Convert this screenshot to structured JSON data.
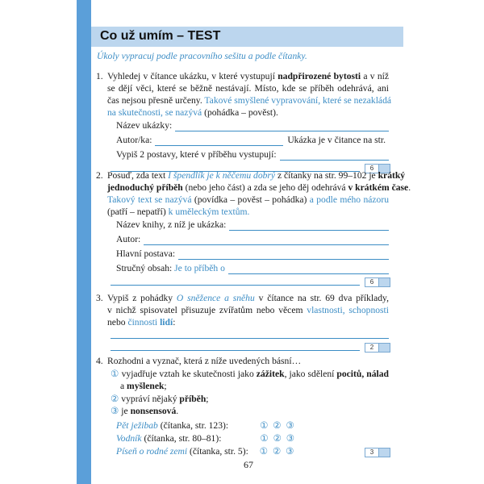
{
  "colors": {
    "accent": "#3c8dc5",
    "strip": "#5b9fd9",
    "title_bar": "#bcd6ee"
  },
  "title": "Co už umím – TEST",
  "subtitle": "Úkoly vypracuj podle pracovního sešitu a podle čítanky.",
  "tasks": [
    {
      "number": "1.",
      "lines": [
        [
          [
            "n",
            "Vyhledej v čítance ukázku, v které vystupují "
          ],
          [
            "b",
            "nadpřirozené bytosti"
          ],
          [
            "n",
            " a v níž"
          ]
        ],
        [
          [
            "n",
            "se dějí věci, které se běžně nestávají. Místo, kde se příběh odehrává, ani"
          ]
        ],
        [
          [
            "n",
            "čas nejsou přesně určeny. "
          ],
          [
            "c",
            "Takové smyšlené vypravování, které se nezakládá"
          ]
        ],
        [
          [
            "c",
            "na skutečnosti, se nazývá"
          ],
          [
            "n",
            " (pohádka – pověst)."
          ]
        ],
        [
          [
            "n",
            "Název ukázky:"
          ],
          [
            "blank",
            "grow"
          ]
        ],
        [
          [
            "n",
            "Autor/ka:"
          ],
          [
            "blank",
            "160"
          ],
          [
            "n",
            "  Ukázka je v čitance na str."
          ],
          [
            "blank",
            "grow"
          ]
        ],
        [
          [
            "n",
            "Vypiš 2 postavy, které v příběhu vystupují:"
          ],
          [
            "blank",
            "grow"
          ]
        ],
        [
          [
            "blank",
            "grow"
          ]
        ]
      ],
      "score": "6"
    },
    {
      "number": "2.",
      "lines": [
        [
          [
            "n",
            "Posuď, zda text "
          ],
          [
            "ci",
            "I špendlík je k něčemu dobrý"
          ],
          [
            "n",
            " z čítanky na str. 99–102 je "
          ],
          [
            "b",
            "krátký"
          ]
        ],
        [
          [
            "b",
            "jednoduchý příběh"
          ],
          [
            "n",
            " (nebo jeho část) a zda se jeho děj odehrává "
          ],
          [
            "b",
            "v krátkém čase"
          ],
          [
            "n",
            "."
          ]
        ],
        [
          [
            "c",
            "Takový text se nazývá"
          ],
          [
            "n",
            " (povídka – pověst – pohádka) "
          ],
          [
            "c",
            "a podle mého názoru"
          ]
        ],
        [
          [
            "n",
            "(patří – nepatří) "
          ],
          [
            "c",
            "k uměleckým textům."
          ]
        ],
        [
          [
            "n",
            "Název knihy, z níž je ukázka:"
          ],
          [
            "blank",
            "grow"
          ]
        ],
        [
          [
            "n",
            "Autor:"
          ],
          [
            "blank",
            "grow"
          ]
        ],
        [
          [
            "n",
            "Hlavní postava:"
          ],
          [
            "blank",
            "grow"
          ]
        ],
        [
          [
            "n",
            "Stručný obsah: "
          ],
          [
            "c",
            "Je to příběh o"
          ],
          [
            "blank",
            "grow"
          ]
        ],
        [
          [
            "blank",
            "grow"
          ]
        ]
      ],
      "score": "6"
    },
    {
      "number": "3.",
      "lines": [
        [
          [
            "n",
            "Vypiš z pohádky "
          ],
          [
            "ci",
            "O sněžence a sněhu"
          ],
          [
            "n",
            " v čítance na str. 69 dva příklady,"
          ]
        ],
        [
          [
            "n",
            "v nichž spisovatel přisuzuje zvířatům nebo věcem "
          ],
          [
            "c",
            "vlastnosti, schopnosti"
          ]
        ],
        [
          [
            "n",
            "nebo "
          ],
          [
            "c",
            "činnosti "
          ],
          [
            "cb",
            "lidí"
          ],
          [
            "n",
            ":"
          ]
        ],
        [
          [
            "blank",
            "grow"
          ]
        ],
        [
          [
            "blank",
            "grow"
          ]
        ]
      ],
      "score": "2"
    },
    {
      "number": "4.",
      "lines": [
        [
          [
            "n",
            "Rozhodni a vyznač, která z níže uvedených básní…"
          ]
        ],
        [
          [
            "c",
            "① "
          ],
          [
            "n",
            "vyjadřuje vztah ke skutečnosti jako "
          ],
          [
            "b",
            "zážitek"
          ],
          [
            "n",
            ", jako sdělení "
          ],
          [
            "b",
            "pocitů, nálad"
          ]
        ],
        [
          [
            "n",
            "a "
          ],
          [
            "b",
            "myšlenek"
          ],
          [
            "n",
            ";"
          ]
        ],
        [
          [
            "c",
            "② "
          ],
          [
            "n",
            "vypráví nějaký "
          ],
          [
            "b",
            "příběh"
          ],
          [
            "n",
            ";"
          ]
        ],
        [
          [
            "c",
            "③ "
          ],
          [
            "n",
            "je "
          ],
          [
            "b",
            "nonsensová"
          ],
          [
            "n",
            "."
          ]
        ],
        [
          [
            "ci",
            "Pět ježibab"
          ],
          [
            "n",
            " (čítanka, str. 123):"
          ],
          [
            "tab",
            ""
          ],
          [
            "c",
            "①  ②  ③"
          ]
        ],
        [
          [
            "ci",
            "Vodník"
          ],
          [
            "n",
            " (čítanka, str. 80–81):"
          ],
          [
            "tab",
            ""
          ],
          [
            "c",
            "①  ②  ③"
          ]
        ],
        [
          [
            "ci",
            "Píseň o rodné zemi"
          ],
          [
            "n",
            " (čítanka, str. 5):"
          ],
          [
            "tab",
            ""
          ],
          [
            "c",
            "①  ②  ③"
          ]
        ]
      ],
      "score": "3"
    }
  ],
  "page_number": "67"
}
